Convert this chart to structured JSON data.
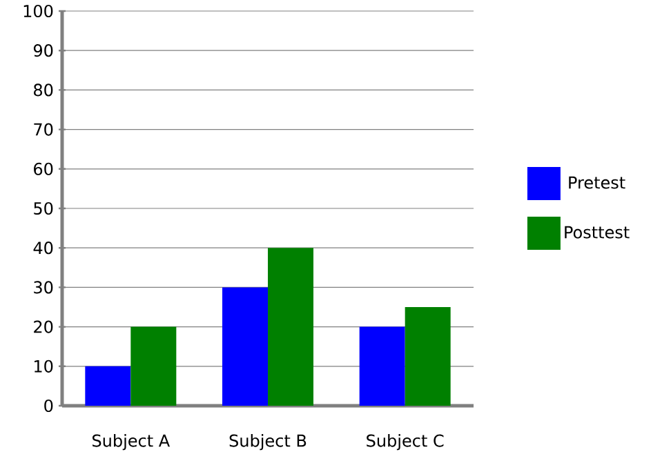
{
  "chart_data": {
    "type": "bar",
    "categories": [
      "Subject A",
      "Subject B",
      "Subject C"
    ],
    "series": [
      {
        "name": "Pretest",
        "color": "#0000ff",
        "values": [
          10,
          30,
          20
        ]
      },
      {
        "name": "Posttest",
        "color": "#008000",
        "values": [
          20,
          40,
          25
        ]
      }
    ],
    "ylim": [
      0,
      100
    ],
    "yticks": [
      0,
      10,
      20,
      30,
      40,
      50,
      60,
      70,
      80,
      90,
      100
    ],
    "grid": "y",
    "legend": "right"
  }
}
